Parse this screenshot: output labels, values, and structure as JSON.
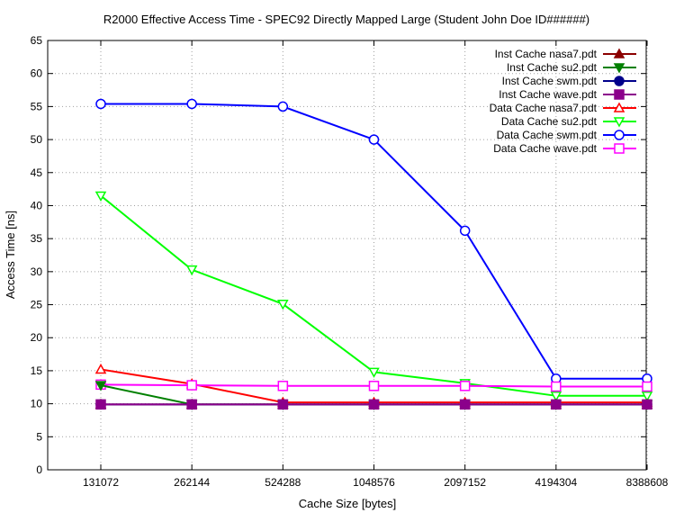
{
  "chart_data": {
    "type": "line",
    "title": "R2000 Effective Access Time - SPEC92 Directly Mapped Large (Student John Doe ID######)",
    "xlabel": "Cache Size [bytes]",
    "ylabel": "Access Time [ns]",
    "categories": [
      "131072",
      "262144",
      "524288",
      "1048576",
      "2097152",
      "4194304",
      "8388608"
    ],
    "ylim": [
      0,
      65
    ],
    "yticks": [
      "0",
      "5",
      "10",
      "15",
      "20",
      "25",
      "30",
      "35",
      "40",
      "45",
      "50",
      "55",
      "60",
      "65"
    ],
    "grid": true,
    "legend_position": "top-right",
    "series": [
      {
        "name": "Inst Cache nasa7.pdt",
        "color": "#8b0000",
        "marker": "triangle-up-filled",
        "values": [
          9.9,
          9.9,
          9.9,
          9.9,
          9.9,
          9.9,
          9.9
        ]
      },
      {
        "name": "Inst Cache su2.pdt",
        "color": "#008000",
        "marker": "triangle-down-filled",
        "values": [
          12.8,
          9.9,
          9.9,
          9.9,
          9.9,
          9.9,
          9.9
        ]
      },
      {
        "name": "Inst Cache swm.pdt",
        "color": "#00008b",
        "marker": "circle-filled",
        "values": [
          9.9,
          9.9,
          9.9,
          9.9,
          9.9,
          9.9,
          9.9
        ]
      },
      {
        "name": "Inst Cache wave.pdt",
        "color": "#8b008b",
        "marker": "square-filled",
        "values": [
          9.9,
          9.9,
          9.9,
          9.9,
          9.9,
          9.9,
          9.9
        ]
      },
      {
        "name": "Data Cache nasa7.pdt",
        "color": "#ff0000",
        "marker": "triangle-up-open",
        "values": [
          15.2,
          13.0,
          10.2,
          10.2,
          10.2,
          10.2,
          10.2
        ]
      },
      {
        "name": "Data Cache su2.pdt",
        "color": "#00ff00",
        "marker": "triangle-down-open",
        "values": [
          41.5,
          30.3,
          25.1,
          14.8,
          13.1,
          11.2,
          11.2
        ]
      },
      {
        "name": "Data Cache swm.pdt",
        "color": "#0000ff",
        "marker": "circle-open",
        "values": [
          55.4,
          55.4,
          55.0,
          50.0,
          36.2,
          13.8,
          13.8
        ]
      },
      {
        "name": "Data Cache wave.pdt",
        "color": "#ff00ff",
        "marker": "square-open",
        "values": [
          12.9,
          12.8,
          12.7,
          12.7,
          12.7,
          12.6,
          12.6
        ]
      }
    ]
  }
}
